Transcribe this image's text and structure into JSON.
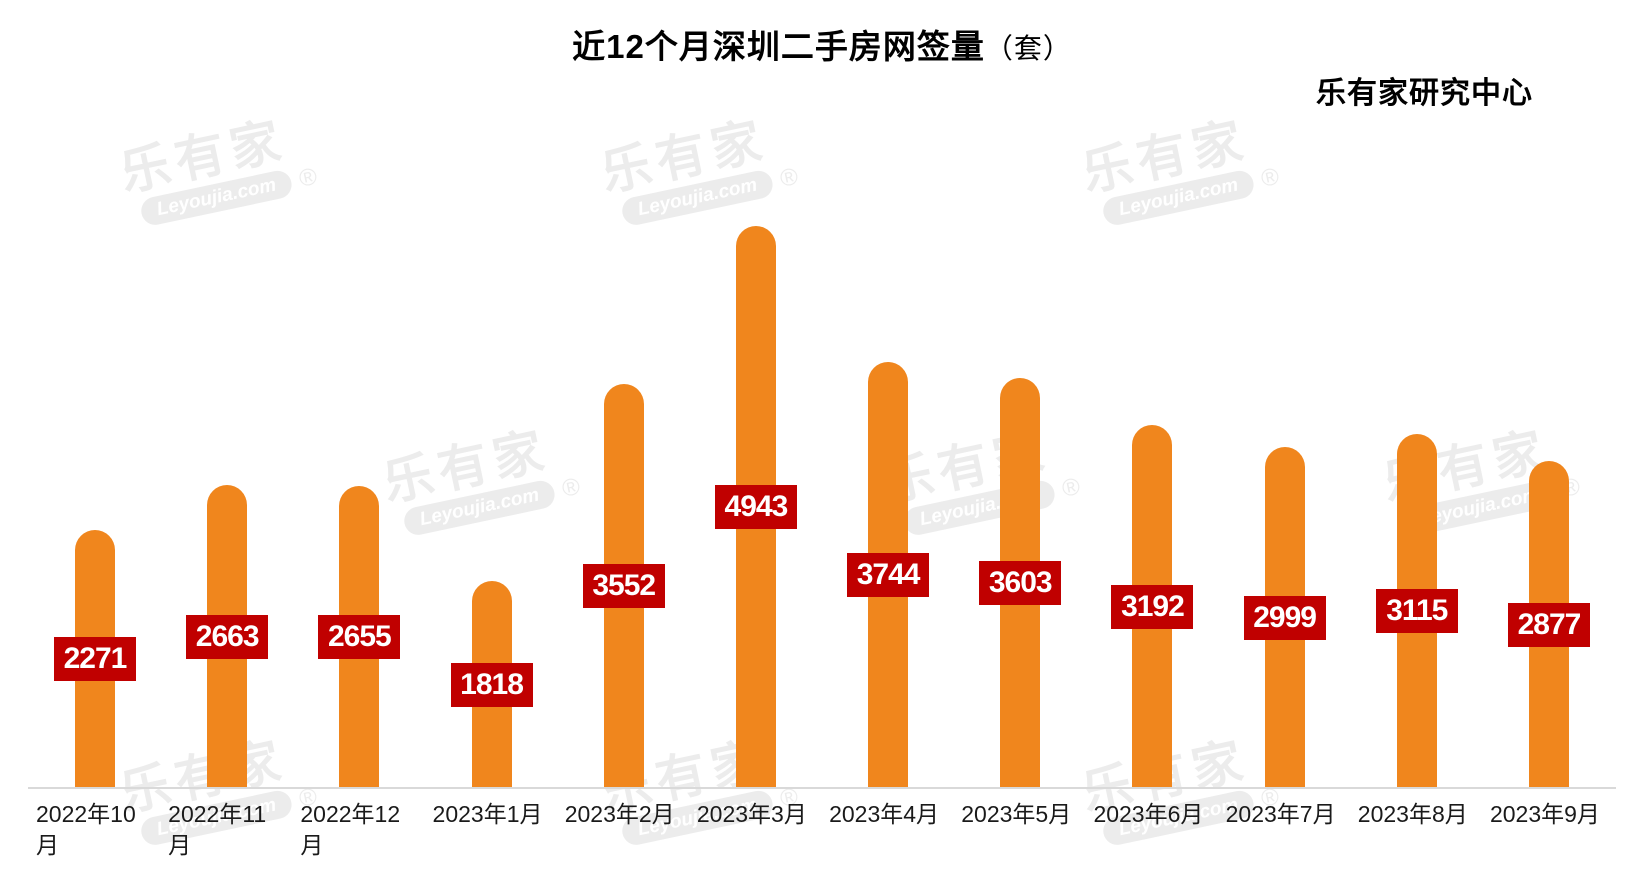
{
  "header": {
    "title": "近12个月深圳二手房网签量",
    "unit": "（套）",
    "source": "乐有家研究中心"
  },
  "watermark": {
    "cn": "乐有家",
    "en": "Leyoujia.com",
    "reg": "®"
  },
  "chart_data": {
    "type": "bar",
    "title": "近12个月深圳二手房网签量（套）",
    "xlabel": "",
    "ylabel": "",
    "categories": [
      "2022年10月",
      "2022年11月",
      "2022年12月",
      "2023年1月",
      "2023年2月",
      "2023年3月",
      "2023年4月",
      "2023年5月",
      "2023年6月",
      "2023年7月",
      "2023年8月",
      "2023年9月"
    ],
    "values": [
      2271,
      2663,
      2655,
      1818,
      3552,
      4943,
      3744,
      3603,
      3192,
      2999,
      3115,
      2877
    ],
    "ylim": [
      0,
      4943
    ],
    "grid": false,
    "legend": "none",
    "data_labels": "on",
    "colors": {
      "bar": "#F0861D",
      "label_bg": "#C00000",
      "label_text": "#FFFFFF",
      "axis_line": "#D9D9D9",
      "title_text": "#000000",
      "watermark": "#ECECEC"
    }
  }
}
